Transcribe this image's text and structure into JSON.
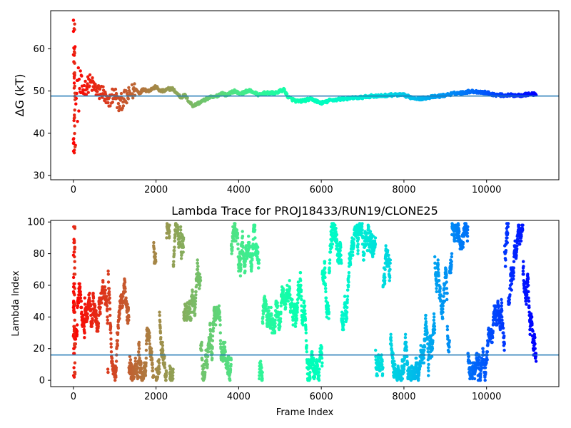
{
  "colors": {
    "hline": "#1f77b4",
    "colormap": "rainbow"
  },
  "chart_data": [
    {
      "type": "scatter",
      "title": "",
      "xlabel": "",
      "ylabel": "ΔG (kT)",
      "xlim": [
        -550,
        11750
      ],
      "ylim": [
        29,
        69
      ],
      "xticks": [
        0,
        2000,
        4000,
        6000,
        8000,
        10000
      ],
      "yticks": [
        30,
        40,
        50,
        60
      ],
      "hline": 48.8,
      "n_frames": 11200,
      "grid": false,
      "legend": "none",
      "trend": {
        "x": [
          0,
          30,
          60,
          100,
          150,
          200,
          300,
          400,
          500,
          600,
          700,
          800,
          850,
          900,
          1000,
          1100,
          1200,
          1300,
          1400,
          1500,
          1600,
          1700,
          1800,
          1900,
          2000,
          2100,
          2200,
          2300,
          2400,
          2500,
          2600,
          2700,
          2800,
          2900,
          3000,
          3100,
          3200,
          3300,
          3400,
          3500,
          3600,
          3700,
          3800,
          3900,
          4000,
          4100,
          4200,
          4300,
          4400,
          4500,
          4600,
          4700,
          4800,
          4900,
          5000,
          5100,
          5200,
          5300,
          5400,
          5500,
          5600,
          5700,
          5800,
          5900,
          6000,
          6100,
          6200,
          6400,
          6600,
          6800,
          7000,
          7200,
          7400,
          7600,
          7800,
          8000,
          8200,
          8400,
          8600,
          8800,
          9000,
          9200,
          9400,
          9600,
          9800,
          10000,
          10200,
          10400,
          10600,
          10800,
          11000,
          11200
        ],
        "y": [
          52,
          50,
          47,
          49,
          51,
          50,
          51,
          52,
          51,
          49.5,
          50,
          47.5,
          46.5,
          48.5,
          49.5,
          46.5,
          48,
          48.5,
          49.5,
          50.5,
          49.5,
          50.5,
          50,
          50.5,
          51,
          50,
          50,
          50.5,
          50.5,
          49.5,
          48.5,
          49,
          47.5,
          46.5,
          47,
          47.5,
          48,
          48.5,
          48.5,
          49,
          49.5,
          49,
          49.5,
          50,
          49.5,
          49.5,
          50,
          50,
          49.5,
          49,
          49.5,
          49.5,
          49.5,
          49.5,
          50,
          50.3,
          48.5,
          48,
          47.6,
          47.6,
          47.8,
          48,
          48,
          47.5,
          47.2,
          47.3,
          47.8,
          48,
          48.2,
          48.4,
          48.5,
          48.8,
          48.8,
          49,
          49.1,
          49,
          48.4,
          48.2,
          48.5,
          48.7,
          49,
          49.4,
          49.6,
          49.9,
          49.8,
          49.6,
          49.1,
          49,
          49,
          49,
          49.2,
          49.3
        ]
      }
    },
    {
      "type": "scatter",
      "title": "Lambda Trace for PROJ18433/RUN19/CLONE25",
      "xlabel": "Frame Index",
      "ylabel": "Lambda Index",
      "xlim": [
        -550,
        11750
      ],
      "ylim": [
        -4,
        101
      ],
      "xticks": [
        0,
        2000,
        4000,
        6000,
        8000,
        10000
      ],
      "yticks": [
        0,
        20,
        40,
        60,
        80,
        100
      ],
      "hline": 16,
      "n_frames": 11200,
      "lambda_range": [
        0,
        99
      ],
      "grid": false,
      "legend": "none"
    }
  ]
}
